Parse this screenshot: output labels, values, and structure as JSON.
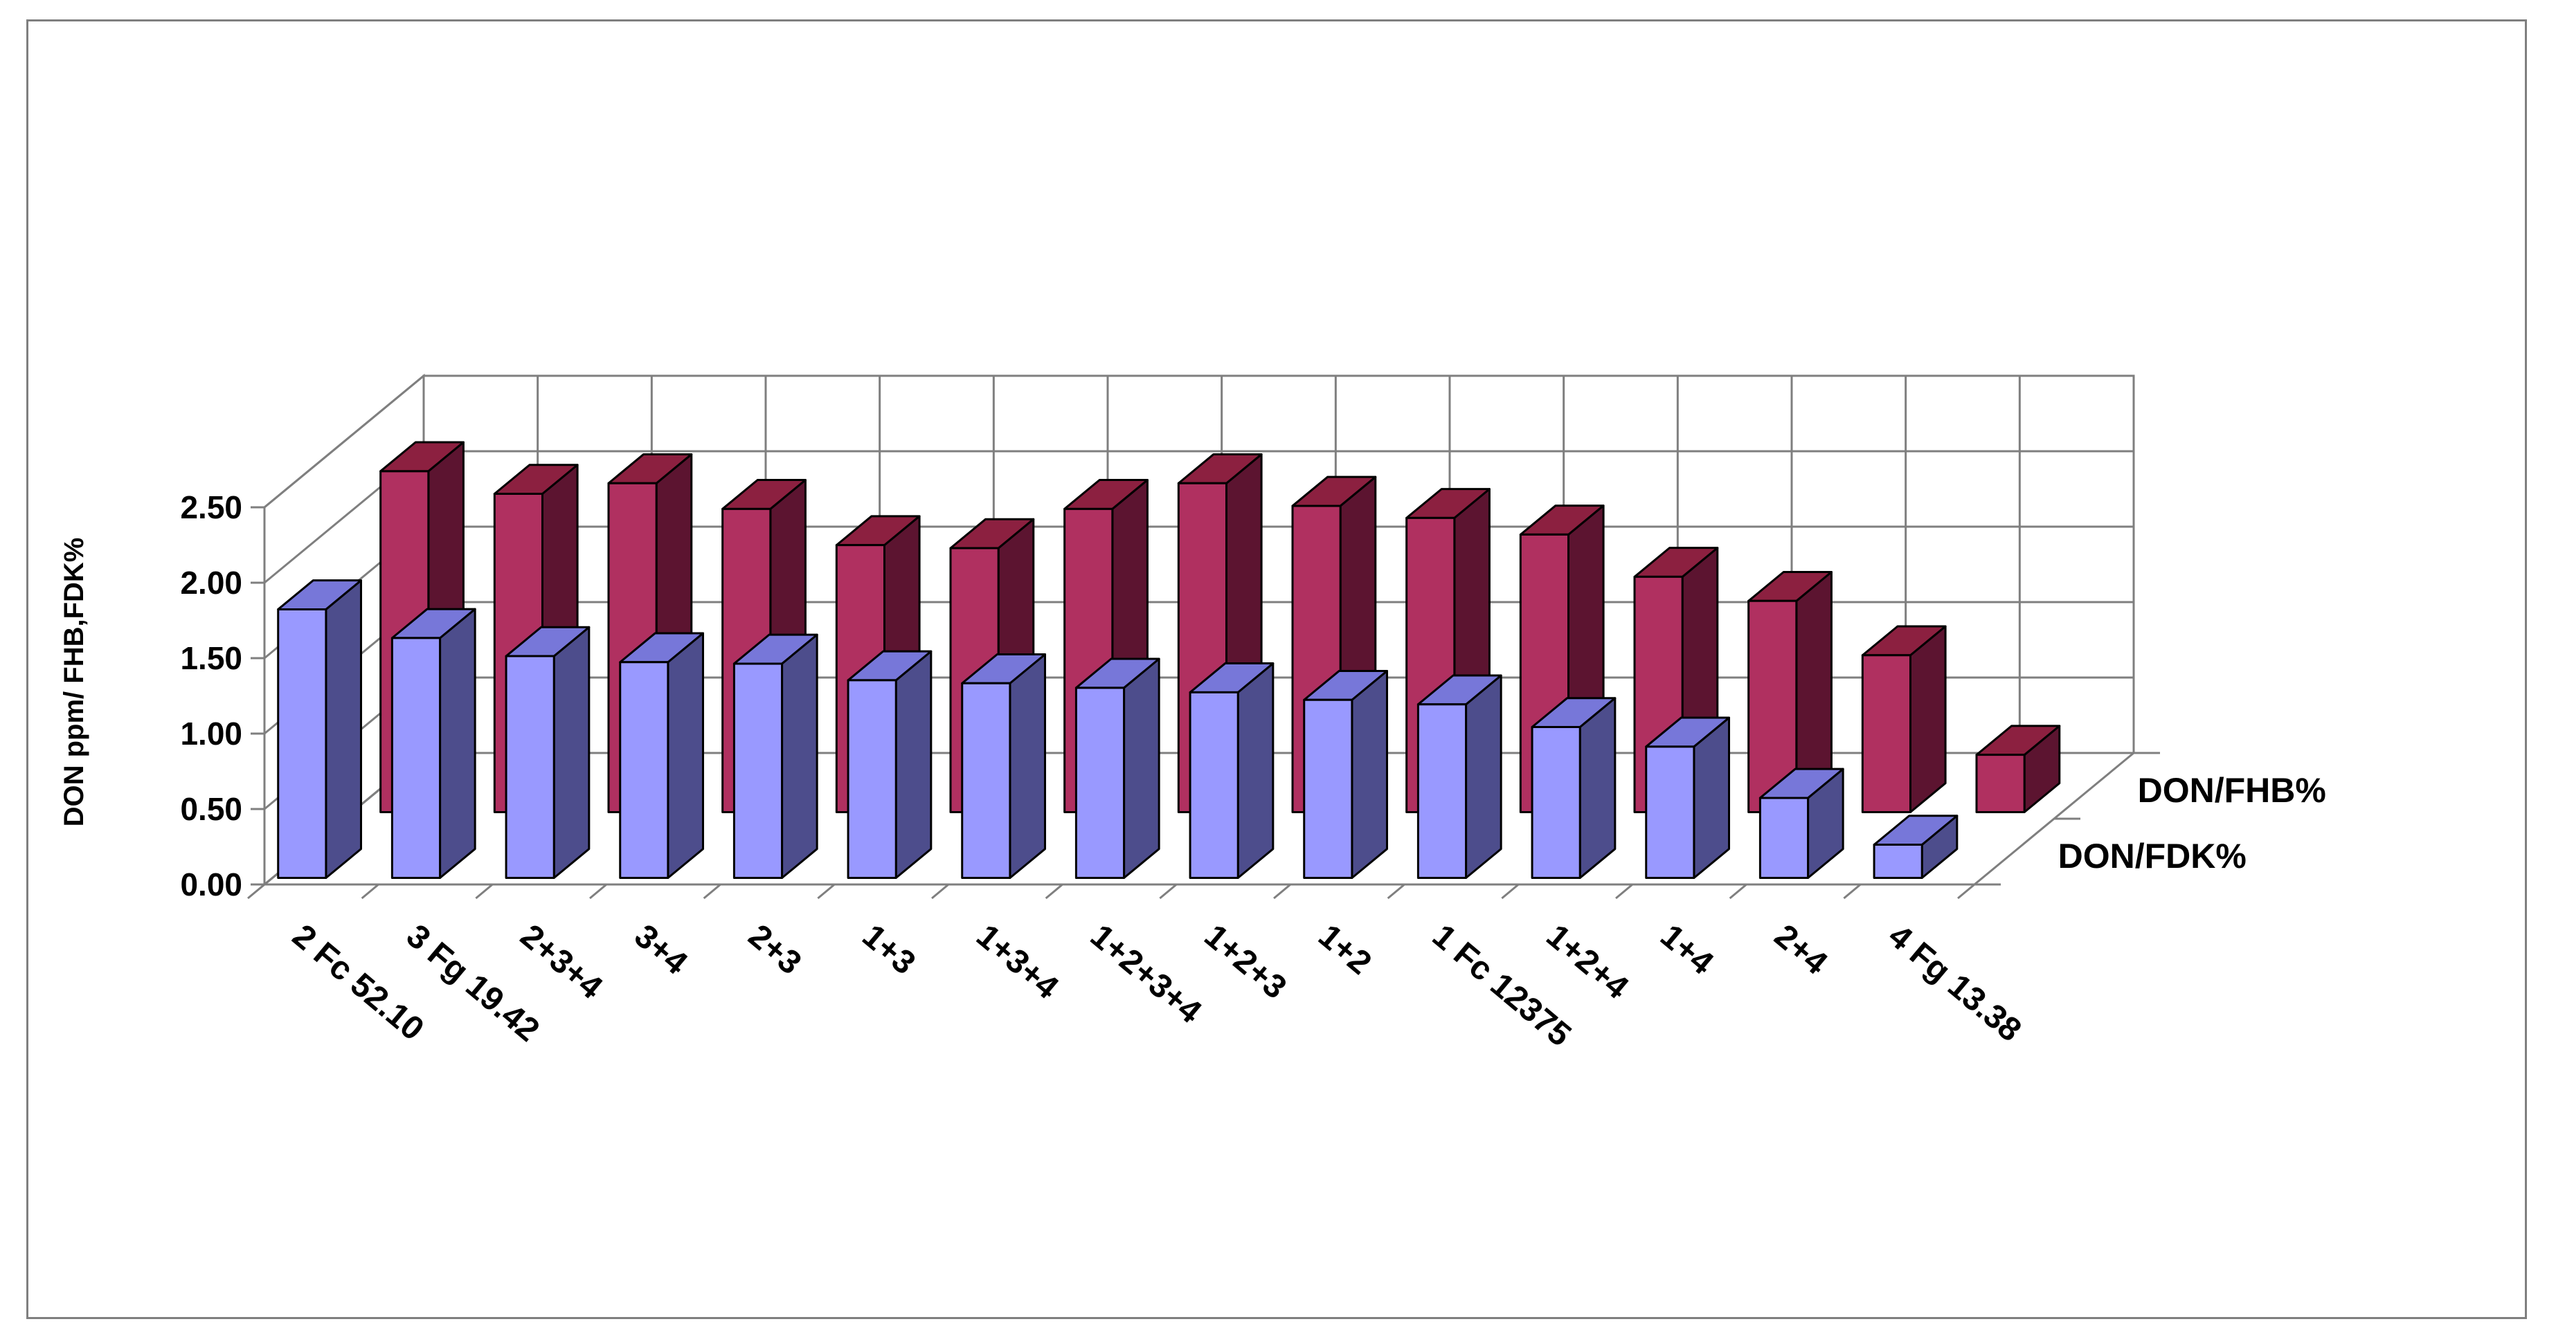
{
  "chart_data": {
    "type": "bar",
    "categories": [
      "2 Fc 52.10",
      "3 Fg 19.42",
      "2+3+4",
      "3+4",
      "2+3",
      "1+3",
      "1+3+4",
      "1+2+3+4",
      "1+2+3",
      "1+2",
      "1 Fc 12375",
      "1+2+4",
      "1+4",
      "2+4",
      "4 Fg 13.38"
    ],
    "series": [
      {
        "name": "DON/FDK%",
        "values": [
          1.78,
          1.59,
          1.47,
          1.43,
          1.42,
          1.31,
          1.29,
          1.26,
          1.23,
          1.18,
          1.15,
          1.0,
          0.87,
          0.53,
          0.22
        ]
      },
      {
        "name": "DON/FHB%",
        "values": [
          2.26,
          2.11,
          2.18,
          2.01,
          1.77,
          1.75,
          2.01,
          2.18,
          2.03,
          1.95,
          1.84,
          1.56,
          1.4,
          1.04,
          0.38
        ]
      }
    ],
    "ylabel": "DON ppm/ FHB,FDK%",
    "xlabel": "",
    "ylim": [
      0,
      2.5
    ],
    "yticks": [
      "0.00",
      "0.50",
      "1.00",
      "1.50",
      "2.00",
      "2.50"
    ],
    "grid": true,
    "colors": {
      "fdk_front": "#9999ff",
      "fdk_top": "#7777d9",
      "fdk_side": "#4d4d8c",
      "fhb_front": "#b03060",
      "fhb_top": "#8c2040",
      "fhb_side": "#5c1430"
    }
  }
}
